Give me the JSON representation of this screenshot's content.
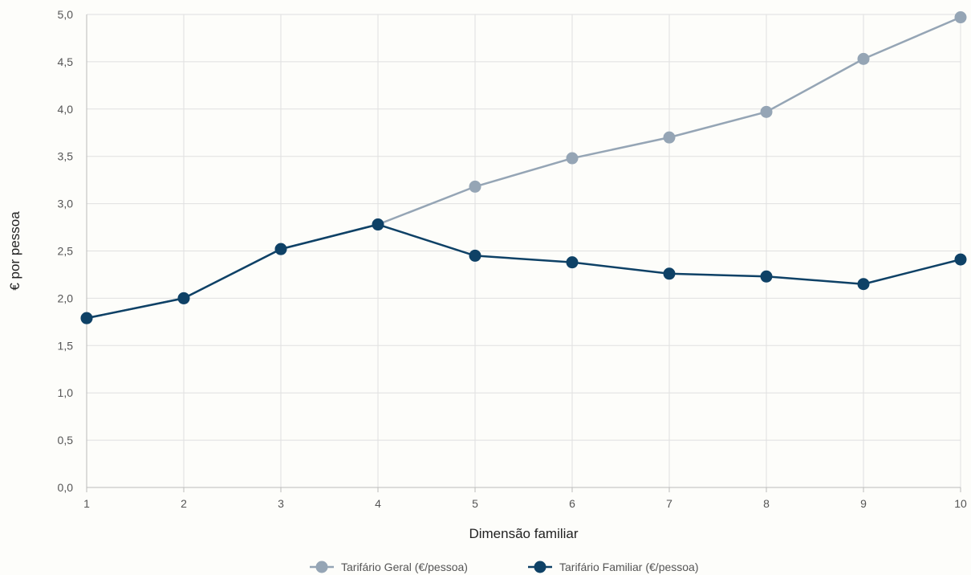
{
  "chart_data": {
    "type": "line",
    "title": "",
    "xlabel": "Dimensão familiar",
    "ylabel": "€ por pessoa",
    "x": [
      1,
      2,
      3,
      4,
      5,
      6,
      7,
      8,
      9,
      10
    ],
    "xlim": [
      1,
      10
    ],
    "ylim": [
      0,
      5
    ],
    "yticks": [
      0,
      0.5,
      1,
      1.5,
      2,
      2.5,
      3,
      3.5,
      4,
      4.5,
      5
    ],
    "ytick_labels": [
      "0,0",
      "0,5",
      "1,0",
      "1,5",
      "2,0",
      "2,5",
      "3,0",
      "3,5",
      "4,0",
      "4,5",
      "5,0"
    ],
    "xtick_labels": [
      "1",
      "2",
      "3",
      "4",
      "5",
      "6",
      "7",
      "8",
      "9",
      "10"
    ],
    "grid": true,
    "legend_position": "bottom-center",
    "series": [
      {
        "name": "Tarifário Geral (€/pessoa)",
        "color": "#95a5b5",
        "values": [
          1.79,
          2.0,
          2.52,
          2.78,
          3.18,
          3.48,
          3.7,
          3.97,
          4.53,
          4.97
        ]
      },
      {
        "name": "Tarifário Familiar (€/pessoa)",
        "color": "#0e4166",
        "values": [
          1.79,
          2.0,
          2.52,
          2.78,
          2.45,
          2.38,
          2.26,
          2.23,
          2.15,
          2.41
        ]
      }
    ]
  }
}
